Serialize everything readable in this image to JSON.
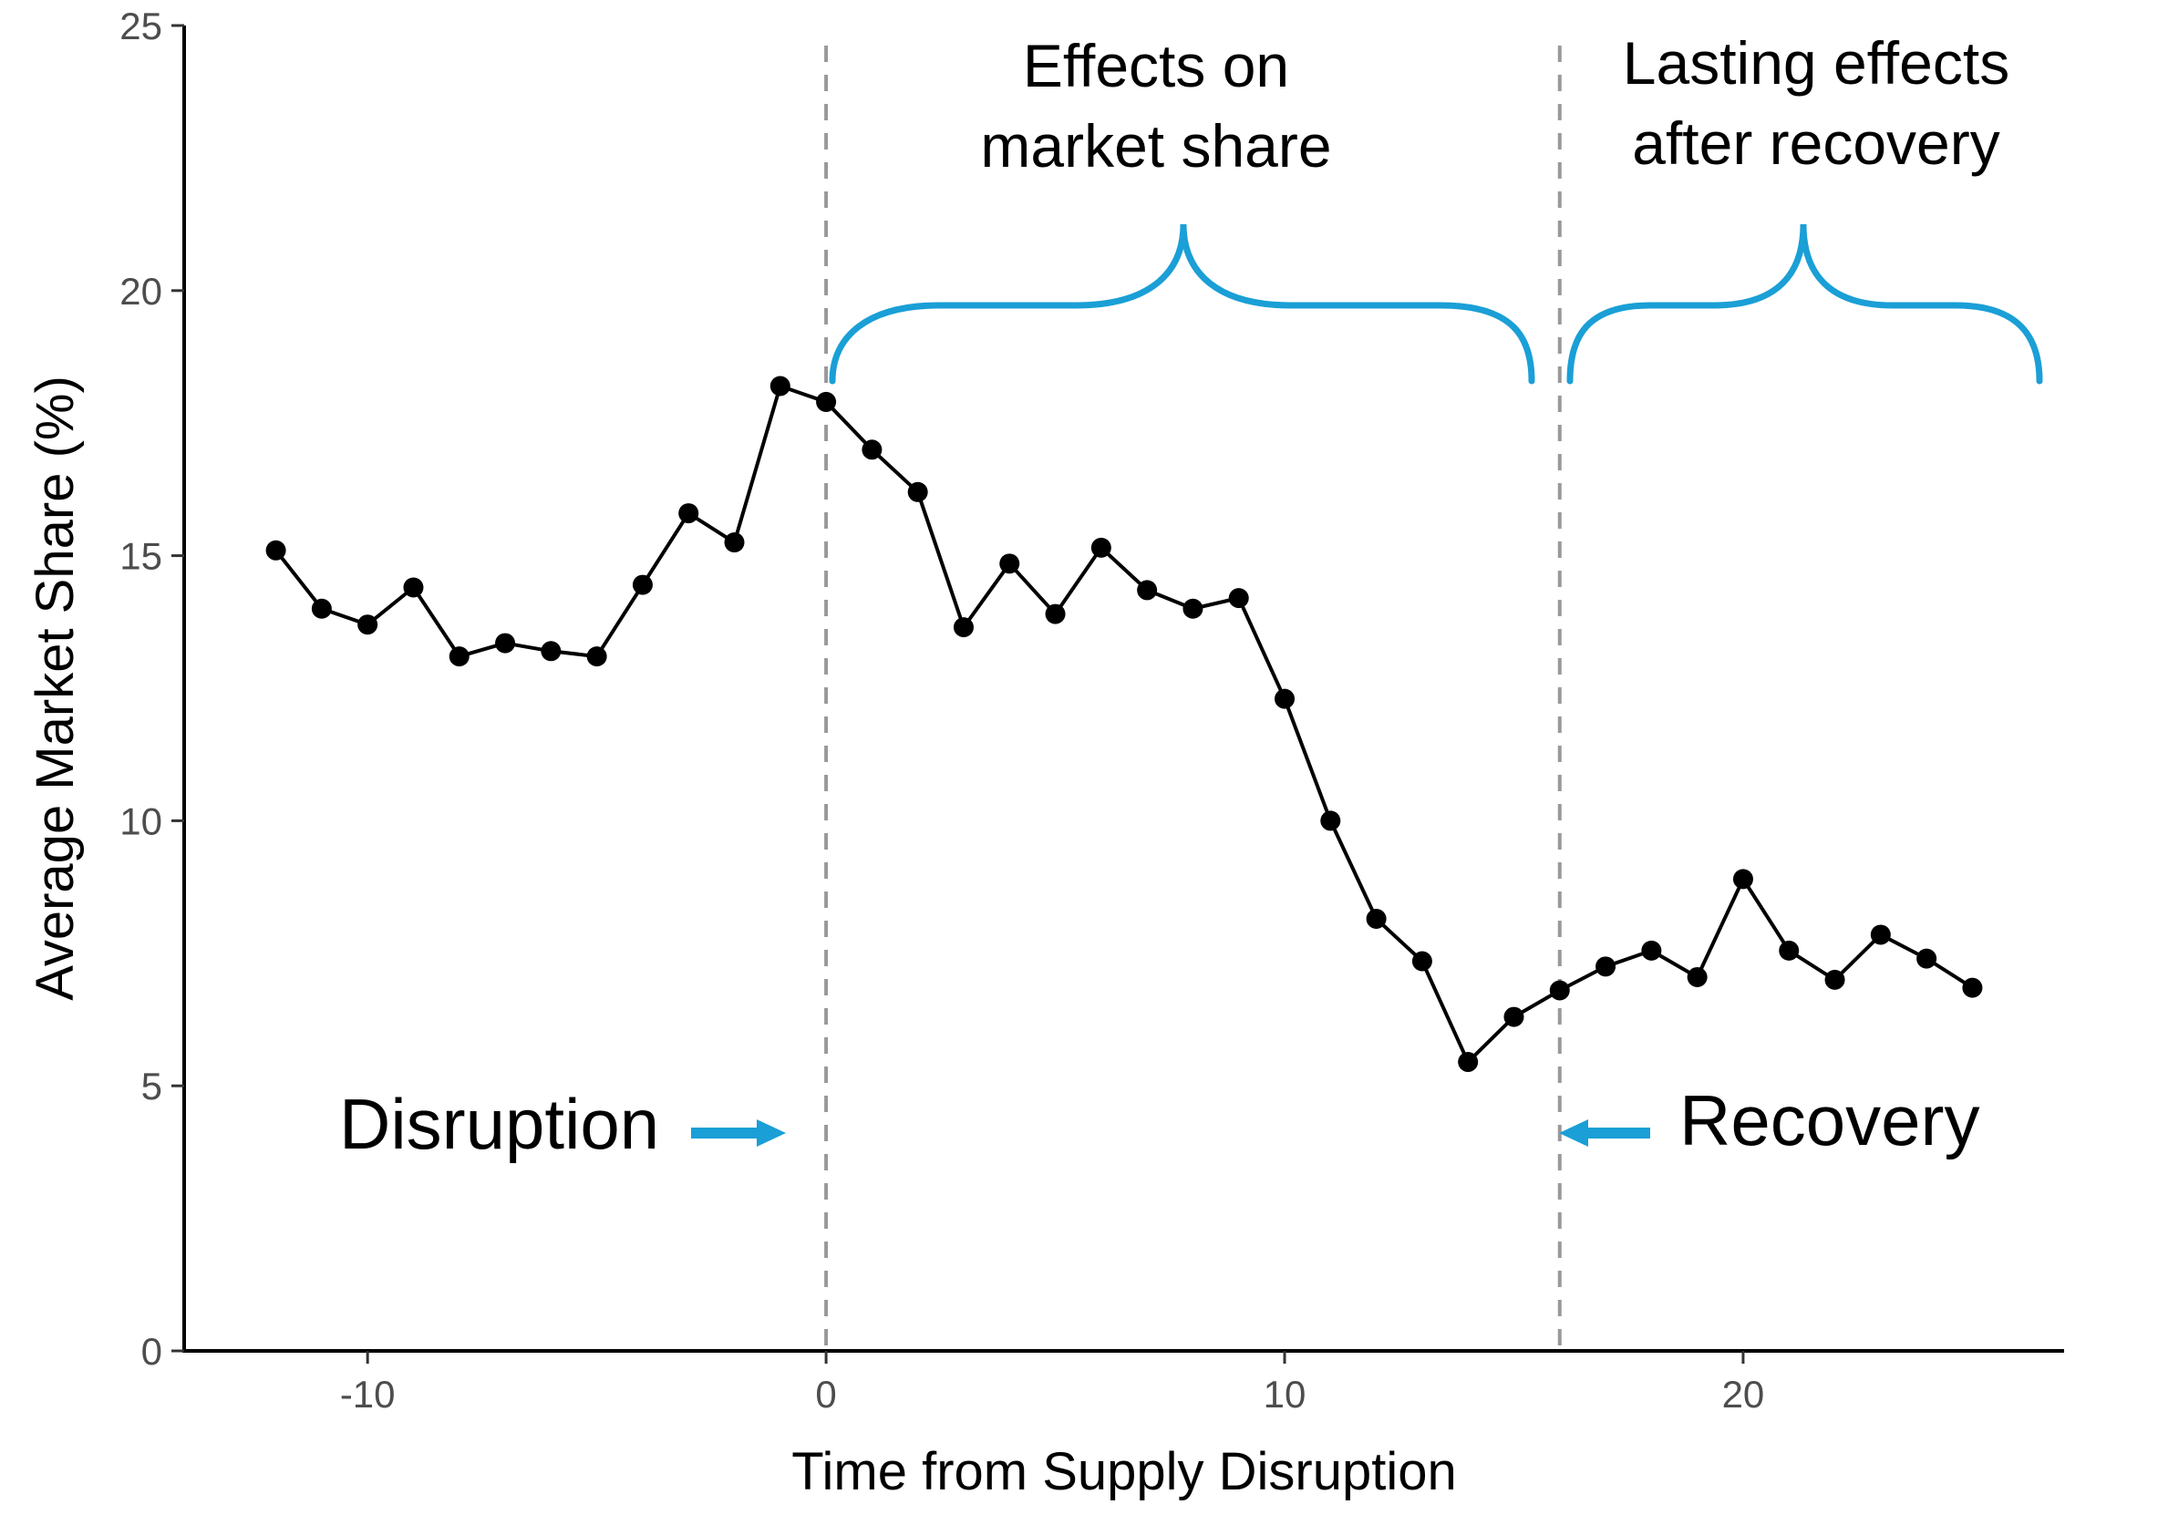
{
  "chart_data": {
    "type": "line",
    "title": "",
    "xlabel": "Time from Supply Disruption",
    "ylabel": "Average Market Share (%)",
    "xlim": [
      -14,
      27
    ],
    "ylim": [
      0,
      25
    ],
    "x_ticks": [
      -10,
      0,
      10,
      20
    ],
    "x_tick_labels": [
      "-10",
      "0",
      "10",
      "20"
    ],
    "y_ticks": [
      0,
      5,
      10,
      15,
      20,
      25
    ],
    "y_tick_labels": [
      "0",
      "5",
      "10",
      "15",
      "20",
      "25"
    ],
    "grid": false,
    "legend": "none",
    "series": [
      {
        "x": [
          -12,
          -11,
          -10,
          -9,
          -8,
          -7,
          -6,
          -5,
          -4,
          -3,
          -2,
          -1,
          0,
          1,
          2,
          3,
          4,
          5,
          6,
          7,
          8,
          9,
          10,
          11,
          12,
          13,
          14,
          15,
          16,
          17,
          18,
          19,
          20,
          21,
          22,
          23,
          24,
          25
        ],
        "values": [
          15.1,
          14.0,
          13.7,
          14.4,
          13.1,
          13.35,
          13.2,
          13.1,
          14.45,
          15.8,
          15.25,
          18.2,
          17.9,
          17.0,
          16.2,
          13.65,
          14.85,
          13.9,
          15.15,
          14.35,
          14.0,
          14.2,
          12.3,
          10.0,
          8.15,
          7.35,
          5.45,
          6.3,
          6.8,
          7.25,
          7.55,
          7.05,
          8.9,
          7.55,
          7.0,
          7.85,
          7.4,
          6.85
        ],
        "color": "#000000"
      }
    ],
    "reference_lines": [
      {
        "x": 0,
        "style": "dashed",
        "color": "#999999"
      },
      {
        "x": 16,
        "style": "dashed",
        "color": "#999999"
      }
    ],
    "annotations": {
      "disruption": "Disruption",
      "recovery": "Recovery",
      "effects_line1": "Effects on",
      "effects_line2": "market share",
      "lasting_line1": "Lasting effects",
      "lasting_line2": "after recovery"
    },
    "accent_color": "#1a9fd6"
  }
}
